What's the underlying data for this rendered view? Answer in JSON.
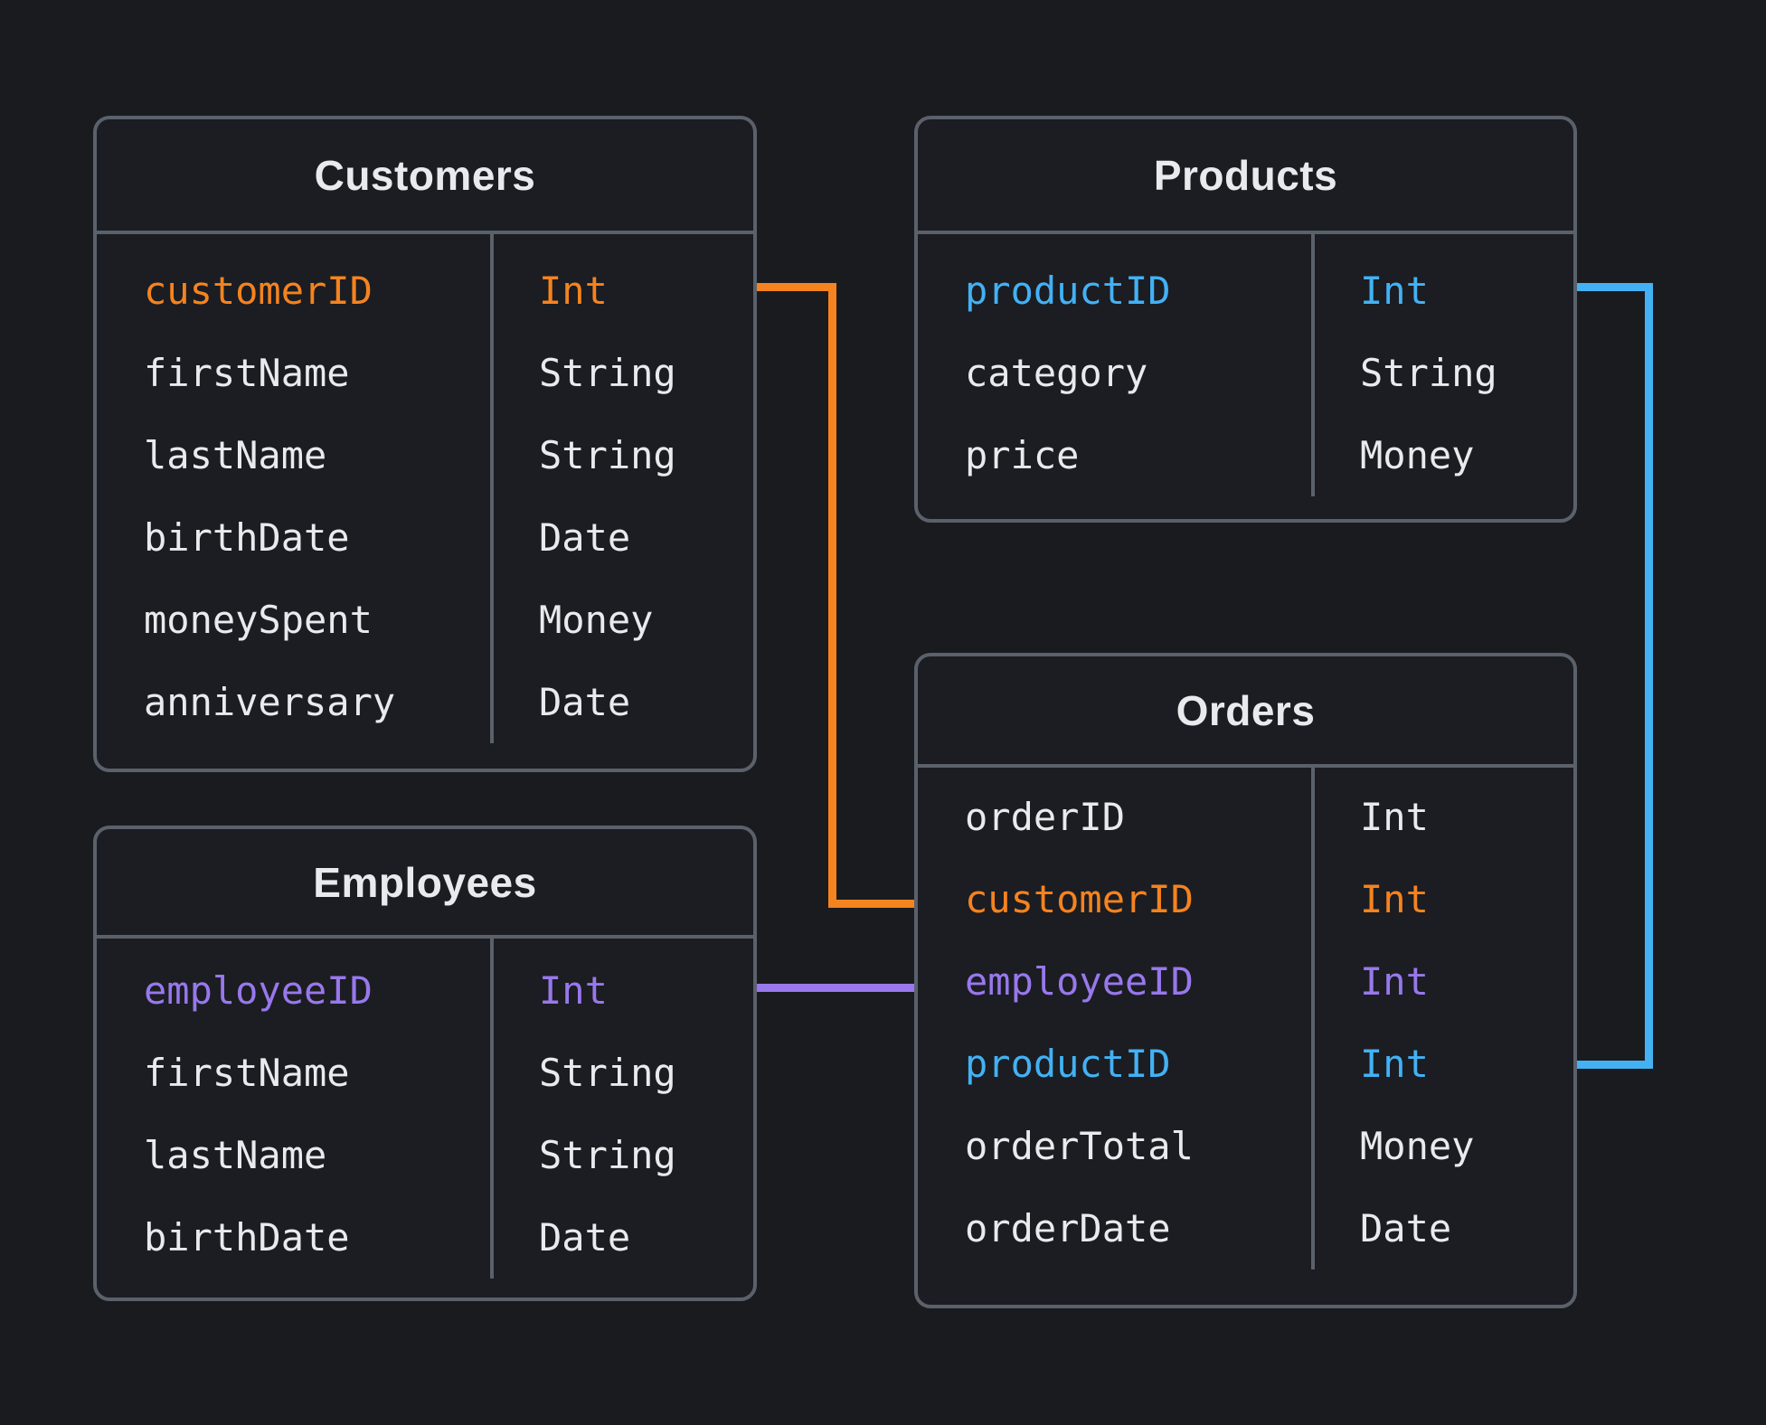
{
  "diagram": {
    "tables": {
      "customers": {
        "title": "Customers",
        "fields": [
          {
            "name": "customerID",
            "type": "Int",
            "color": "orange"
          },
          {
            "name": "firstName",
            "type": "String",
            "color": "white"
          },
          {
            "name": "lastName",
            "type": "String",
            "color": "white"
          },
          {
            "name": "birthDate",
            "type": "Date",
            "color": "white"
          },
          {
            "name": "moneySpent",
            "type": "Money",
            "color": "white"
          },
          {
            "name": "anniversary",
            "type": "Date",
            "color": "white"
          }
        ]
      },
      "products": {
        "title": "Products",
        "fields": [
          {
            "name": "productID",
            "type": "Int",
            "color": "blue"
          },
          {
            "name": "category",
            "type": "String",
            "color": "white"
          },
          {
            "name": "price",
            "type": "Money",
            "color": "white"
          }
        ]
      },
      "employees": {
        "title": "Employees",
        "fields": [
          {
            "name": "employeeID",
            "type": "Int",
            "color": "purple"
          },
          {
            "name": "firstName",
            "type": "String",
            "color": "white"
          },
          {
            "name": "lastName",
            "type": "String",
            "color": "white"
          },
          {
            "name": "birthDate",
            "type": "Date",
            "color": "white"
          }
        ]
      },
      "orders": {
        "title": "Orders",
        "fields": [
          {
            "name": "orderID",
            "type": "Int",
            "color": "white"
          },
          {
            "name": "customerID",
            "type": "Int",
            "color": "orange"
          },
          {
            "name": "employeeID",
            "type": "Int",
            "color": "purple"
          },
          {
            "name": "productID",
            "type": "Int",
            "color": "blue"
          },
          {
            "name": "orderTotal",
            "type": "Money",
            "color": "white"
          },
          {
            "name": "orderDate",
            "type": "Date",
            "color": "white"
          }
        ]
      }
    },
    "connectors": [
      {
        "from": "Customers.customerID",
        "to": "Orders.customerID",
        "color": "orange"
      },
      {
        "from": "Employees.employeeID",
        "to": "Orders.employeeID",
        "color": "purple"
      },
      {
        "from": "Products.productID",
        "to": "Orders.productID",
        "color": "blue"
      }
    ],
    "colors": {
      "background": "#1a1b1f",
      "panel": "#1b1d22",
      "border": "#5a616b",
      "text": "#e8eaed",
      "orange": "#f5831f",
      "blue": "#43b1f4",
      "purple": "#9878ec"
    }
  }
}
